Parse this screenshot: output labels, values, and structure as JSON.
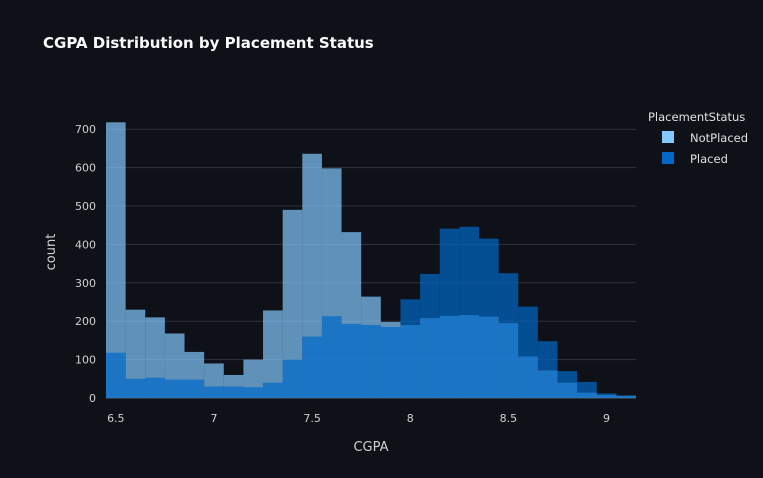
{
  "chart_data": {
    "type": "bar",
    "title": "CGPA Distribution by Placement Status",
    "xlabel": "CGPA",
    "ylabel": "count",
    "bin_width": 0.1,
    "bin_starts": [
      6.45,
      6.55,
      6.65,
      6.75,
      6.85,
      6.95,
      7.05,
      7.15,
      7.25,
      7.35,
      7.45,
      7.55,
      7.65,
      7.75,
      7.85,
      7.95,
      8.05,
      8.15,
      8.25,
      8.35,
      8.45,
      8.55,
      8.65,
      8.75,
      8.85,
      8.95,
      9.05
    ],
    "xlim": [
      6.45,
      9.15
    ],
    "ylim": [
      0,
      750
    ],
    "x_ticks": [
      6.5,
      7,
      7.5,
      8,
      8.5,
      9
    ],
    "x_tick_labels": [
      "6.5",
      "7",
      "7.5",
      "8",
      "8.5",
      "9"
    ],
    "y_ticks": [
      0,
      100,
      200,
      300,
      400,
      500,
      600,
      700
    ],
    "y_tick_labels": [
      "0",
      "100",
      "200",
      "300",
      "400",
      "500",
      "600",
      "700"
    ],
    "grid": true,
    "legend_title": "PlacementStatus",
    "legend_position": "right",
    "series": [
      {
        "name": "NotPlaced",
        "color": "#83c9ff",
        "values": [
          718,
          230,
          210,
          168,
          120,
          90,
          60,
          100,
          228,
          490,
          636,
          598,
          432,
          264,
          198,
          190,
          208,
          214,
          216,
          212,
          195,
          108,
          72,
          40,
          14,
          8,
          6
        ]
      },
      {
        "name": "Placed",
        "color": "#0068c9",
        "values": [
          118,
          50,
          53,
          48,
          48,
          30,
          30,
          28,
          40,
          100,
          160,
          213,
          193,
          190,
          185,
          257,
          323,
          441,
          446,
          415,
          325,
          238,
          148,
          70,
          42,
          12,
          6
        ]
      }
    ]
  }
}
